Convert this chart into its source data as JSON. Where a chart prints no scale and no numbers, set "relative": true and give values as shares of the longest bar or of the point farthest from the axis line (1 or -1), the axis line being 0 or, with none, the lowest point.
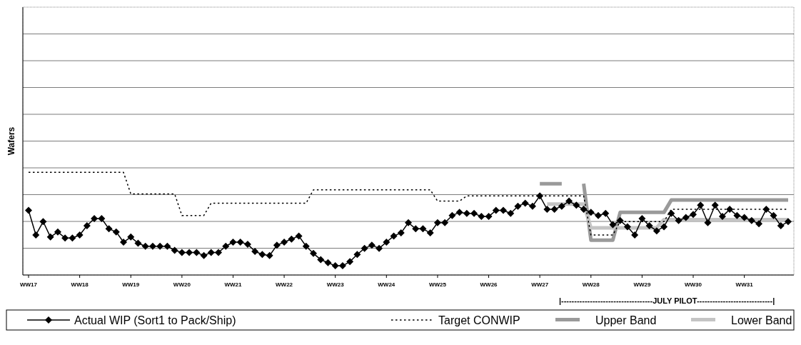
{
  "chart_data": {
    "type": "line",
    "relative": true,
    "ylabel": "Wafers",
    "grid": "y",
    "legend": "bottom",
    "annotations": [
      "|-----------------------------------JULY PILOT-----------------------------|"
    ],
    "categories": [
      "WW17",
      null,
      null,
      null,
      null,
      null,
      null,
      "WW18",
      null,
      null,
      null,
      null,
      null,
      null,
      "WW19",
      null,
      null,
      null,
      null,
      null,
      null,
      "WW20",
      null,
      null,
      null,
      null,
      null,
      null,
      "WW21",
      null,
      null,
      null,
      null,
      null,
      null,
      "WW22",
      null,
      null,
      null,
      null,
      null,
      null,
      "WW23",
      null,
      null,
      null,
      null,
      null,
      null,
      "WW24",
      null,
      null,
      null,
      null,
      null,
      null,
      "WW25",
      null,
      null,
      null,
      null,
      null,
      null,
      "WW26",
      null,
      null,
      null,
      null,
      null,
      null,
      "WW27",
      null,
      null,
      null,
      null,
      null,
      null,
      "WW28",
      null,
      null,
      null,
      null,
      null,
      null,
      "WW29",
      null,
      null,
      null,
      null,
      null,
      null,
      "WW30",
      null,
      null,
      null,
      null,
      null,
      null,
      "WW31",
      null,
      null,
      null,
      null,
      null,
      null
    ],
    "series": [
      {
        "name": "Upper Band",
        "color": "#9a9a9a",
        "line_style": "solid",
        "marker": "none",
        "values": [
          null,
          null,
          null,
          null,
          null,
          null,
          null,
          null,
          null,
          null,
          null,
          null,
          null,
          null,
          null,
          null,
          null,
          null,
          null,
          null,
          null,
          null,
          null,
          null,
          null,
          null,
          null,
          null,
          null,
          null,
          null,
          null,
          null,
          null,
          null,
          null,
          null,
          null,
          null,
          null,
          null,
          null,
          null,
          null,
          null,
          null,
          null,
          null,
          null,
          null,
          null,
          null,
          null,
          null,
          null,
          null,
          null,
          null,
          null,
          null,
          null,
          null,
          null,
          null,
          null,
          null,
          null,
          null,
          null,
          null,
          0.89,
          0.89,
          0.89,
          0.89,
          null,
          null,
          0.89,
          0.34,
          0.34,
          0.34,
          0.34,
          0.61,
          0.61,
          0.61,
          0.61,
          0.61,
          0.61,
          0.61,
          0.73,
          0.73,
          0.73,
          0.73,
          0.73,
          0.73,
          0.73,
          0.73,
          0.73,
          0.73,
          0.73,
          0.73,
          0.73,
          0.73,
          0.73,
          0.73,
          0.73
        ]
      },
      {
        "name": "Lower Band",
        "color": "#c4c4c4",
        "line_style": "solid",
        "marker": "none",
        "values": [
          null,
          null,
          null,
          null,
          null,
          null,
          null,
          null,
          null,
          null,
          null,
          null,
          null,
          null,
          null,
          null,
          null,
          null,
          null,
          null,
          null,
          null,
          null,
          null,
          null,
          null,
          null,
          null,
          null,
          null,
          null,
          null,
          null,
          null,
          null,
          null,
          null,
          null,
          null,
          null,
          null,
          null,
          null,
          null,
          null,
          null,
          null,
          null,
          null,
          null,
          null,
          null,
          null,
          null,
          null,
          null,
          null,
          null,
          null,
          null,
          null,
          null,
          null,
          null,
          null,
          null,
          null,
          null,
          null,
          null,
          null,
          0.69,
          0.69,
          0.69,
          0.69,
          0.69,
          0.69,
          0.46,
          0.46,
          0.46,
          0.46,
          0.46,
          0.46,
          0.46,
          0.46,
          0.46,
          0.46,
          0.54,
          0.54,
          0.54,
          0.54,
          0.54,
          0.54,
          0.54,
          0.54,
          0.54,
          0.54,
          0.54,
          0.54,
          0.54,
          0.54,
          0.54,
          0.54,
          0.54,
          0.54
        ]
      },
      {
        "name": "Target CONWIP",
        "color": "#000000",
        "line_style": "dotted",
        "marker": "none",
        "values": [
          1,
          1,
          1,
          1,
          1,
          1,
          1,
          1,
          1,
          1,
          1,
          1,
          1,
          1,
          0.79,
          0.79,
          0.79,
          0.79,
          0.79,
          0.79,
          0.79,
          0.58,
          0.58,
          0.58,
          0.58,
          0.7,
          0.7,
          0.7,
          0.7,
          0.7,
          0.7,
          0.7,
          0.7,
          0.7,
          0.7,
          0.7,
          0.7,
          0.7,
          0.7,
          0.83,
          0.83,
          0.83,
          0.83,
          0.83,
          0.83,
          0.83,
          0.83,
          0.83,
          0.83,
          0.83,
          0.83,
          0.83,
          0.83,
          0.83,
          0.83,
          0.83,
          0.72,
          0.72,
          0.72,
          0.72,
          0.77,
          0.77,
          0.77,
          0.77,
          0.77,
          0.77,
          0.77,
          0.77,
          0.77,
          0.77,
          0.77,
          0.77,
          0.77,
          0.77,
          0.77,
          0.77,
          0.77,
          0.39,
          0.39,
          0.39,
          0.39,
          0.52,
          0.52,
          0.52,
          0.52,
          0.52,
          0.52,
          0.52,
          0.64,
          0.64,
          0.64,
          0.64,
          0.64,
          0.64,
          0.64,
          0.64,
          0.64,
          0.64,
          0.64,
          0.64,
          0.64,
          0.64,
          0.64,
          0.64,
          0.64
        ]
      },
      {
        "name": "Actual WIP (Sort1 to Pack/Ship)",
        "color": "#000000",
        "line_style": "solid",
        "marker": "diamond",
        "values": [
          0.63,
          0.39,
          0.52,
          0.37,
          0.42,
          0.36,
          0.36,
          0.39,
          0.48,
          0.55,
          0.55,
          0.45,
          0.42,
          0.32,
          0.37,
          0.31,
          0.28,
          0.28,
          0.28,
          0.28,
          0.24,
          0.22,
          0.22,
          0.22,
          0.19,
          0.22,
          0.22,
          0.28,
          0.32,
          0.32,
          0.3,
          0.23,
          0.2,
          0.19,
          0.29,
          0.32,
          0.35,
          0.38,
          0.28,
          0.21,
          0.15,
          0.12,
          0.09,
          0.09,
          0.13,
          0.2,
          0.26,
          0.29,
          0.26,
          0.32,
          0.38,
          0.41,
          0.51,
          0.45,
          0.45,
          0.41,
          0.51,
          0.51,
          0.58,
          0.61,
          0.6,
          0.6,
          0.57,
          0.57,
          0.63,
          0.63,
          0.6,
          0.67,
          0.7,
          0.67,
          0.77,
          0.64,
          0.64,
          0.67,
          0.72,
          0.68,
          0.64,
          0.61,
          0.58,
          0.6,
          0.49,
          0.53,
          0.47,
          0.39,
          0.55,
          0.48,
          0.43,
          0.47,
          0.6,
          0.53,
          0.56,
          0.59,
          0.68,
          0.51,
          0.68,
          0.57,
          0.64,
          0.58,
          0.56,
          0.53,
          0.5,
          0.64,
          0.58,
          0.48,
          0.52
        ]
      }
    ]
  }
}
